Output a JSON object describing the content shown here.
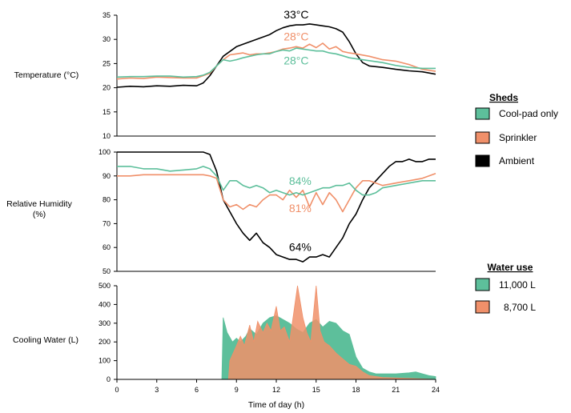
{
  "colors": {
    "cool_pad": "#5dbf9b",
    "sprinkler": "#f0906a",
    "ambient": "#000000",
    "sprinkler_fill": "#e8a07c"
  },
  "xlabel": "Time of day (h)",
  "xticks": [
    0,
    3,
    6,
    9,
    12,
    15,
    18,
    21,
    24
  ],
  "legend_sheds": {
    "title": "Sheds",
    "items": [
      {
        "label": "Cool-pad only",
        "color": "#5dbf9b"
      },
      {
        "label": "Sprinkler",
        "color": "#f0906a"
      },
      {
        "label": "Ambient",
        "color": "#000000"
      }
    ]
  },
  "legend_water": {
    "title": "Water use",
    "items": [
      {
        "label": "11,000 L",
        "color": "#5dbf9b"
      },
      {
        "label": "8,700 L",
        "color": "#f0906a"
      }
    ]
  },
  "chart_data": [
    {
      "type": "line",
      "ylabel": "Temperature (°C)",
      "ylim": [
        10,
        35
      ],
      "yticks": [
        10,
        15,
        20,
        25,
        30,
        35
      ],
      "annotations": [
        {
          "text": "33°C",
          "x": 13.5,
          "y": 34.3,
          "color": "#000000"
        },
        {
          "text": "28°C",
          "x": 13.5,
          "y": 29.8,
          "color": "#f0906a"
        },
        {
          "text": "28°C",
          "x": 13.5,
          "y": 24.8,
          "color": "#5dbf9b"
        }
      ],
      "series": [
        {
          "name": "Ambient",
          "color": "#000000",
          "x": [
            0,
            1,
            2,
            3,
            4,
            5,
            6,
            6.5,
            7,
            7.5,
            8,
            8.5,
            9,
            9.5,
            10,
            10.5,
            11,
            11.5,
            12,
            12.5,
            13,
            13.5,
            14,
            14.5,
            15,
            15.5,
            16,
            16.5,
            17,
            17.5,
            18,
            18.5,
            19,
            20,
            21,
            22,
            23,
            24
          ],
          "y": [
            20.1,
            20.3,
            20.2,
            20.4,
            20.3,
            20.5,
            20.4,
            21,
            22.5,
            24.5,
            26.5,
            27.5,
            28.5,
            29,
            29.5,
            30,
            30.5,
            31,
            31.8,
            32.4,
            32.8,
            33,
            33,
            33.2,
            33,
            32.8,
            32.6,
            32.2,
            31.5,
            29.5,
            27,
            25.2,
            24.5,
            24.2,
            23.8,
            23.5,
            23.3,
            22.8
          ]
        },
        {
          "name": "Sprinkler",
          "color": "#f0906a",
          "x": [
            0,
            1,
            2,
            3,
            4,
            5,
            6,
            6.5,
            7,
            7.5,
            8,
            8.5,
            9,
            9.5,
            10,
            10.5,
            11,
            11.5,
            12,
            12.5,
            13,
            13.5,
            14,
            14.5,
            15,
            15.5,
            16,
            16.5,
            17,
            17.5,
            18,
            19,
            20,
            21,
            22,
            23,
            24
          ],
          "y": [
            21.8,
            22,
            21.9,
            22.2,
            22.1,
            22,
            22,
            22.5,
            23,
            24.5,
            25.8,
            26.8,
            27,
            27.2,
            26.8,
            27,
            27,
            27.2,
            27.5,
            28,
            28.2,
            28.5,
            28.2,
            29,
            28.3,
            29.2,
            28,
            28.5,
            27.5,
            27.2,
            27,
            26.5,
            25.8,
            25.5,
            24.8,
            23.8,
            23.4
          ]
        },
        {
          "name": "Cool-pad only",
          "color": "#5dbf9b",
          "x": [
            0,
            1,
            2,
            3,
            4,
            5,
            6,
            6.5,
            7,
            7.5,
            8,
            8.5,
            9,
            9.5,
            10,
            10.5,
            11,
            11.5,
            12,
            12.5,
            13,
            13.5,
            14,
            14.5,
            15,
            15.5,
            16,
            16.5,
            17,
            17.5,
            18,
            19,
            20,
            21,
            22,
            23,
            24
          ],
          "y": [
            22.2,
            22.3,
            22.3,
            22.4,
            22.4,
            22.2,
            22.3,
            22.6,
            23.2,
            24.5,
            25.8,
            25.5,
            25.8,
            26.2,
            26.5,
            26.8,
            27,
            27,
            27.5,
            27.8,
            27.6,
            28.2,
            28,
            27.8,
            27.6,
            27.6,
            27.2,
            27,
            26.6,
            26.2,
            26,
            25.6,
            25.2,
            24.6,
            24.2,
            24,
            24
          ]
        }
      ]
    },
    {
      "type": "line",
      "ylabel": "Relative Humidity (%)",
      "ylim": [
        50,
        100
      ],
      "yticks": [
        50,
        60,
        70,
        80,
        90,
        100
      ],
      "annotations": [
        {
          "text": "84%",
          "x": 13.8,
          "y": 86.2,
          "color": "#5dbf9b"
        },
        {
          "text": "81%",
          "x": 13.8,
          "y": 74.8,
          "color": "#f0906a"
        },
        {
          "text": "64%",
          "x": 13.8,
          "y": 58.5,
          "color": "#000000"
        }
      ],
      "series": [
        {
          "name": "Ambient",
          "color": "#000000",
          "x": [
            0,
            1,
            2,
            3,
            4,
            5,
            6,
            6.5,
            7,
            7.5,
            8,
            8.5,
            9,
            9.5,
            10,
            10.5,
            11,
            11.5,
            12,
            12.5,
            13,
            13.5,
            14,
            14.5,
            15,
            15.5,
            16,
            16.5,
            17,
            17.5,
            18,
            18.5,
            19,
            19.5,
            20,
            20.5,
            21,
            21.5,
            22,
            22.5,
            23,
            23.5,
            24
          ],
          "y": [
            100,
            100,
            100,
            100,
            100,
            100,
            100,
            100,
            99,
            92,
            80,
            75,
            70,
            66,
            63,
            66,
            62,
            60,
            57,
            56,
            55,
            55,
            54,
            56,
            56,
            57,
            56,
            60,
            64,
            70,
            74,
            80,
            85,
            88,
            91,
            94,
            96,
            96,
            97,
            96,
            96,
            97,
            97
          ]
        },
        {
          "name": "Sprinkler",
          "color": "#f0906a",
          "x": [
            0,
            1,
            2,
            3,
            4,
            5,
            6,
            6.5,
            7,
            7.5,
            8,
            8.5,
            9,
            9.5,
            10,
            10.5,
            11,
            11.5,
            12,
            12.5,
            13,
            13.5,
            14,
            14.5,
            15,
            15.5,
            16,
            16.5,
            17,
            17.5,
            18,
            18.5,
            19,
            19.5,
            20,
            21,
            22,
            23,
            24
          ],
          "y": [
            90,
            90,
            90.5,
            90.5,
            90.5,
            90.5,
            90.5,
            90.5,
            90,
            89,
            80,
            77,
            78,
            76,
            78,
            77,
            80,
            82,
            82,
            80,
            84,
            81,
            84,
            77,
            83,
            78,
            83,
            80,
            75,
            80,
            85,
            88,
            88,
            87,
            86,
            87,
            88,
            89,
            91
          ]
        },
        {
          "name": "Cool-pad only",
          "color": "#5dbf9b",
          "x": [
            0,
            1,
            2,
            3,
            4,
            5,
            6,
            6.5,
            7,
            7.5,
            8,
            8.5,
            9,
            9.5,
            10,
            10.5,
            11,
            11.5,
            12,
            12.5,
            13,
            13.5,
            14,
            14.5,
            15,
            15.5,
            16,
            16.5,
            17,
            17.5,
            18,
            18.5,
            19,
            19.5,
            20,
            21,
            22,
            23,
            24
          ],
          "y": [
            94,
            94,
            93,
            93,
            92,
            92.5,
            93,
            94,
            93,
            90,
            84,
            88,
            88,
            86,
            85,
            86,
            85,
            83,
            84,
            83,
            82,
            83,
            82,
            83,
            84,
            85,
            85,
            86,
            86,
            87,
            84,
            82,
            82,
            83,
            85,
            86,
            87,
            88,
            88
          ]
        }
      ]
    },
    {
      "type": "area",
      "ylabel": "Cooling Water (L)",
      "ylim": [
        0,
        500
      ],
      "yticks": [
        0,
        100,
        200,
        300,
        400,
        500
      ],
      "series": [
        {
          "name": "11,000 L",
          "color": "#5dbf9b",
          "x": [
            0,
            7.9,
            8,
            8.3,
            8.7,
            9,
            9.3,
            9.7,
            10,
            10.5,
            11,
            11.5,
            12,
            12.5,
            13,
            13.5,
            14,
            14.5,
            15,
            15.5,
            16,
            16.5,
            17,
            17.5,
            18,
            18.5,
            19,
            19.5,
            20,
            21,
            22,
            22.5,
            23,
            23.5,
            24
          ],
          "y": [
            0,
            0,
            330,
            250,
            200,
            220,
            200,
            230,
            270,
            240,
            300,
            330,
            340,
            320,
            300,
            270,
            250,
            300,
            320,
            280,
            310,
            300,
            260,
            240,
            120,
            60,
            40,
            30,
            30,
            30,
            35,
            40,
            30,
            20,
            15
          ]
        },
        {
          "name": "8,700 L",
          "color": "#f0906a",
          "x": [
            0,
            8.4,
            8.5,
            9,
            9.3,
            9.6,
            10,
            10.3,
            10.6,
            11,
            11.3,
            11.6,
            12,
            12.3,
            12.6,
            13,
            13.3,
            13.6,
            14,
            14.3,
            14.6,
            15,
            15.3,
            15.6,
            16,
            16.5,
            17,
            17.5,
            18,
            18.5,
            19,
            20,
            22,
            24
          ],
          "y": [
            0,
            0,
            100,
            180,
            230,
            180,
            290,
            200,
            310,
            250,
            300,
            260,
            390,
            260,
            280,
            200,
            350,
            500,
            330,
            250,
            200,
            500,
            260,
            200,
            180,
            140,
            110,
            80,
            70,
            40,
            20,
            10,
            5,
            0
          ]
        }
      ]
    }
  ]
}
